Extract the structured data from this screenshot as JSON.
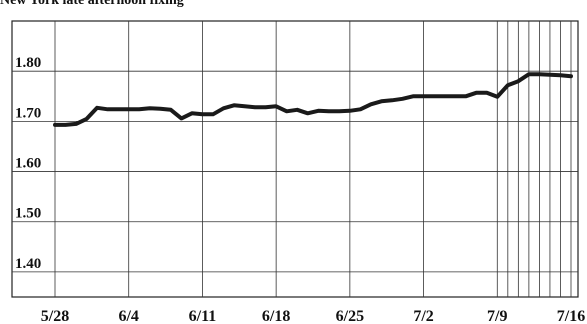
{
  "chart_data": {
    "type": "line",
    "title": "New York late afternoon fixing",
    "xlabel": "",
    "ylabel": "",
    "ylim": [
      1.35,
      1.9
    ],
    "grid": true,
    "y_ticks": [
      "1.40",
      "1.50",
      "1.60",
      "1.70",
      "1.80"
    ],
    "x_ticks": [
      {
        "label": "5/28",
        "day": 0
      },
      {
        "label": "6/4",
        "day": 7
      },
      {
        "label": "6/11",
        "day": 14
      },
      {
        "label": "6/18",
        "day": 21
      },
      {
        "label": "6/25",
        "day": 28
      },
      {
        "label": "7/2",
        "day": 35
      },
      {
        "label": "7/9",
        "day": 42
      },
      {
        "label": "7/16",
        "day": 49
      }
    ],
    "x_extra_gridlines": [
      43,
      44,
      45,
      46,
      47,
      48
    ],
    "series": [
      {
        "color": "#1a1a1a",
        "x": [
          0,
          1,
          2,
          3,
          4,
          5,
          6,
          7,
          8,
          9,
          10,
          11,
          12,
          13,
          14,
          15,
          16,
          17,
          18,
          19,
          20,
          21,
          22,
          23,
          24,
          25,
          26,
          27,
          28,
          29,
          30,
          31,
          32,
          33,
          34,
          35,
          36,
          37,
          38,
          39,
          40,
          41,
          42,
          43,
          44,
          45,
          46,
          47,
          48,
          49
        ],
        "values": [
          1.693,
          1.693,
          1.695,
          1.705,
          1.727,
          1.724,
          1.724,
          1.724,
          1.724,
          1.726,
          1.725,
          1.723,
          1.706,
          1.716,
          1.714,
          1.714,
          1.726,
          1.732,
          1.73,
          1.728,
          1.728,
          1.73,
          1.72,
          1.723,
          1.716,
          1.721,
          1.72,
          1.72,
          1.721,
          1.724,
          1.734,
          1.74,
          1.742,
          1.745,
          1.75,
          1.75,
          1.75,
          1.75,
          1.75,
          1.75,
          1.757,
          1.757,
          1.749,
          1.772,
          1.78,
          1.794,
          1.794,
          1.793,
          1.792,
          1.79
        ]
      }
    ]
  }
}
